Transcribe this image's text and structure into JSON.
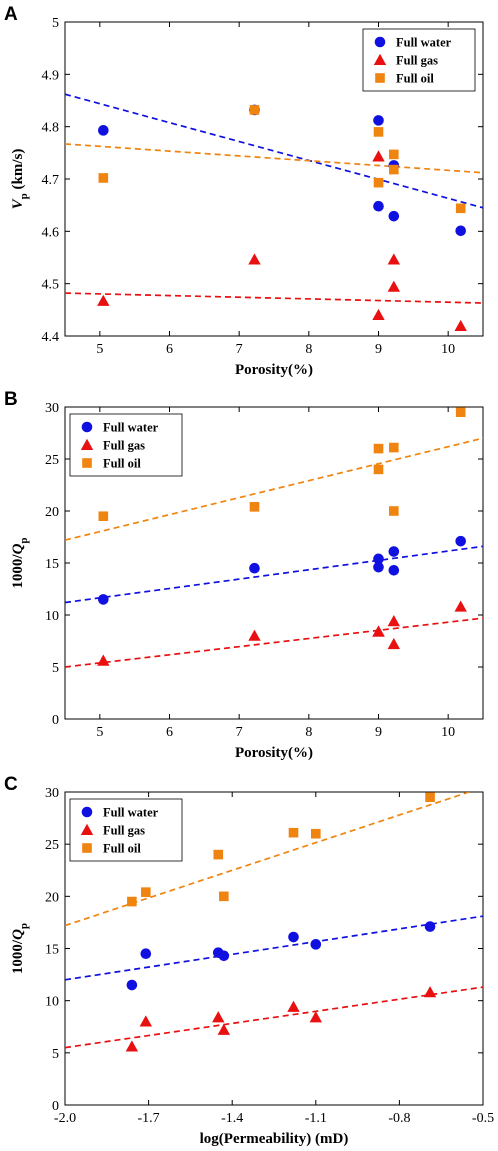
{
  "chart_data": [
    {
      "panel": "A",
      "type": "scatter",
      "xlabel": "Porosity(%)",
      "ylabel_main": "V",
      "ylabel_sub": "p",
      "ylabel_unit": " (km/s)",
      "xlim": [
        4.5,
        10.5
      ],
      "ylim": [
        4.4,
        5.0
      ],
      "xticks": [
        5,
        6,
        7,
        8,
        9,
        10
      ],
      "xtick_labels": [
        "5",
        "6",
        "7",
        "8",
        "9",
        "10"
      ],
      "yticks": [
        4.4,
        4.5,
        4.6,
        4.7,
        4.8,
        4.9,
        5.0
      ],
      "ytick_labels": [
        "4.4",
        "4.5",
        "4.6",
        "4.7",
        "4.8",
        "4.9",
        "5"
      ],
      "legend_position": "top-right",
      "series": [
        {
          "name": "Full water",
          "marker": "circle",
          "color": "#1010e0",
          "x": [
            5.05,
            7.22,
            9.0,
            9.0,
            9.22,
            9.22,
            10.18
          ],
          "y": [
            4.793,
            4.832,
            4.812,
            4.648,
            4.726,
            4.629,
            4.601
          ],
          "fit": [
            [
              4.5,
              4.862
            ],
            [
              10.5,
              4.645
            ]
          ]
        },
        {
          "name": "Full gas",
          "marker": "triangle",
          "color": "#e81010",
          "x": [
            5.05,
            7.22,
            9.0,
            9.0,
            9.22,
            9.22,
            10.18
          ],
          "y": [
            4.467,
            4.546,
            4.743,
            4.44,
            4.546,
            4.494,
            4.419
          ],
          "fit": [
            [
              4.5,
              4.482
            ],
            [
              10.5,
              4.463
            ]
          ]
        },
        {
          "name": "Full oil",
          "marker": "square",
          "color": "#f08410",
          "x": [
            5.05,
            7.22,
            9.0,
            9.0,
            9.22,
            9.22,
            10.18
          ],
          "y": [
            4.702,
            4.832,
            4.79,
            4.693,
            4.747,
            4.718,
            4.644
          ],
          "fit": [
            [
              4.5,
              4.767
            ],
            [
              10.5,
              4.712
            ]
          ]
        }
      ]
    },
    {
      "panel": "B",
      "type": "scatter",
      "xlabel": "Porosity(%)",
      "ylabel_main": "1000/Q",
      "ylabel_sub": "p",
      "ylabel_unit": "",
      "xlim": [
        4.5,
        10.5
      ],
      "ylim": [
        0,
        30
      ],
      "xticks": [
        5,
        6,
        7,
        8,
        9,
        10
      ],
      "xtick_labels": [
        "5",
        "6",
        "7",
        "8",
        "9",
        "10"
      ],
      "yticks": [
        0,
        5,
        10,
        15,
        20,
        25,
        30
      ],
      "ytick_labels": [
        "0",
        "5",
        "10",
        "15",
        "20",
        "25",
        "30"
      ],
      "legend_position": "top-left",
      "series": [
        {
          "name": "Full water",
          "marker": "circle",
          "color": "#1010e0",
          "x": [
            5.05,
            7.22,
            9.0,
            9.0,
            9.22,
            9.22,
            10.18
          ],
          "y": [
            11.5,
            14.5,
            15.4,
            14.6,
            16.1,
            14.3,
            17.1
          ],
          "fit": [
            [
              4.5,
              11.2
            ],
            [
              10.5,
              16.6
            ]
          ]
        },
        {
          "name": "Full gas",
          "marker": "triangle",
          "color": "#e81010",
          "x": [
            5.05,
            7.22,
            9.0,
            9.0,
            9.22,
            9.22,
            10.18
          ],
          "y": [
            5.6,
            8.0,
            8.4,
            8.4,
            9.4,
            7.2,
            10.8
          ],
          "fit": [
            [
              4.5,
              5.0
            ],
            [
              10.5,
              9.7
            ]
          ]
        },
        {
          "name": "Full oil",
          "marker": "square",
          "color": "#f08410",
          "x": [
            5.05,
            7.22,
            9.0,
            9.0,
            9.22,
            9.22,
            10.18
          ],
          "y": [
            19.5,
            20.4,
            26.0,
            24.0,
            26.1,
            20.0,
            29.5
          ],
          "fit": [
            [
              4.5,
              17.2
            ],
            [
              10.5,
              27.0
            ]
          ]
        }
      ]
    },
    {
      "panel": "C",
      "type": "scatter",
      "xlabel": "log(Permeability) (mD)",
      "ylabel_main": "1000/Q",
      "ylabel_sub": "p",
      "ylabel_unit": "",
      "xlim": [
        -2.0,
        -0.5
      ],
      "ylim": [
        0,
        30
      ],
      "xticks": [
        -2.0,
        -1.7,
        -1.4,
        -1.1,
        -0.8,
        -0.5
      ],
      "xtick_labels": [
        "-2.0",
        "-1.7",
        "-1.4",
        "-1.1",
        "-0.8",
        "-0.5"
      ],
      "yticks": [
        0,
        5,
        10,
        15,
        20,
        25,
        30
      ],
      "ytick_labels": [
        "0",
        "5",
        "10",
        "15",
        "20",
        "25",
        "30"
      ],
      "legend_position": "top-left",
      "series": [
        {
          "name": "Full water",
          "marker": "circle",
          "color": "#1010e0",
          "x": [
            -1.76,
            -1.71,
            -1.45,
            -1.43,
            -1.18,
            -1.1,
            -0.69
          ],
          "y": [
            11.5,
            14.5,
            14.6,
            14.3,
            16.1,
            15.4,
            17.1
          ],
          "fit": [
            [
              -2.0,
              12.0
            ],
            [
              -0.5,
              18.1
            ]
          ]
        },
        {
          "name": "Full gas",
          "marker": "triangle",
          "color": "#e81010",
          "x": [
            -1.76,
            -1.71,
            -1.45,
            -1.43,
            -1.18,
            -1.1,
            -0.69
          ],
          "y": [
            5.6,
            8.0,
            8.4,
            7.2,
            9.4,
            8.4,
            10.8
          ],
          "fit": [
            [
              -2.0,
              5.5
            ],
            [
              -0.5,
              11.3
            ]
          ]
        },
        {
          "name": "Full oil",
          "marker": "square",
          "color": "#f08410",
          "x": [
            -1.76,
            -1.71,
            -1.45,
            -1.43,
            -1.18,
            -1.1,
            -0.69
          ],
          "y": [
            19.5,
            20.4,
            24.0,
            20.0,
            26.1,
            26.0,
            29.5
          ],
          "fit": [
            [
              -2.0,
              17.2
            ],
            [
              -0.55,
              30.0
            ]
          ]
        }
      ]
    }
  ]
}
